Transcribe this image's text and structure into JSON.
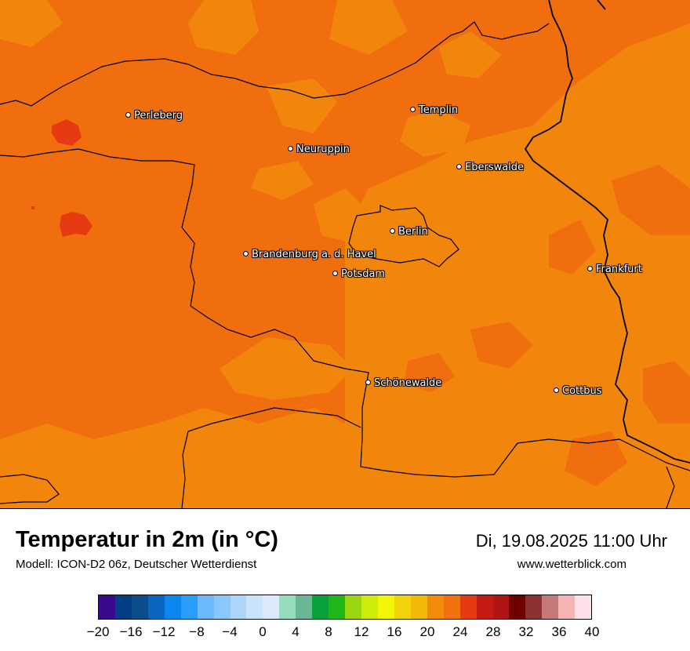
{
  "map": {
    "cities": [
      {
        "name": "Perleberg"
      },
      {
        "name": "Templin"
      },
      {
        "name": "Neuruppin"
      },
      {
        "name": "Eberswalde"
      },
      {
        "name": "Berlin"
      },
      {
        "name": "Brandenburg a. d. Havel"
      },
      {
        "name": "Potsdam"
      },
      {
        "name": "Frankfurt"
      },
      {
        "name": "Schönewalde"
      },
      {
        "name": "Cottbus"
      }
    ],
    "colors": {
      "dark_orange": "#f06e0e",
      "light_orange": "#f2850c",
      "red": "#e63b12",
      "border": "#000000"
    }
  },
  "footer": {
    "title": "Temperatur in 2m (in °C)",
    "subtitle": "Modell: ICON-D2 06z, Deutscher Wetterdienst",
    "datetime": "Di, 19.08.2025 11:00 Uhr",
    "website": "www.wetterblick.com"
  },
  "legend": {
    "ticks": [
      "−20",
      "−16",
      "−12",
      "−8",
      "−4",
      "0",
      "4",
      "8",
      "12",
      "16",
      "20",
      "24",
      "28",
      "32",
      "36",
      "40"
    ],
    "colors": [
      "#3a0a8c",
      "#023d86",
      "#0a4c8c",
      "#0866c0",
      "#0a88ef",
      "#289efa",
      "#6bb9fb",
      "#8ac7fc",
      "#aed6fb",
      "#c8e3fb",
      "#daeafb",
      "#96dbbb",
      "#6ab795",
      "#0aa13a",
      "#20b719",
      "#9ad710",
      "#cdec0a",
      "#f4f406",
      "#f2d208",
      "#f2b80a",
      "#f28a0c",
      "#f0720e",
      "#e63b12",
      "#c61b14",
      "#b01414",
      "#700000",
      "#8c3232",
      "#c47878",
      "#f4b4b4",
      "#fde0e8"
    ]
  }
}
